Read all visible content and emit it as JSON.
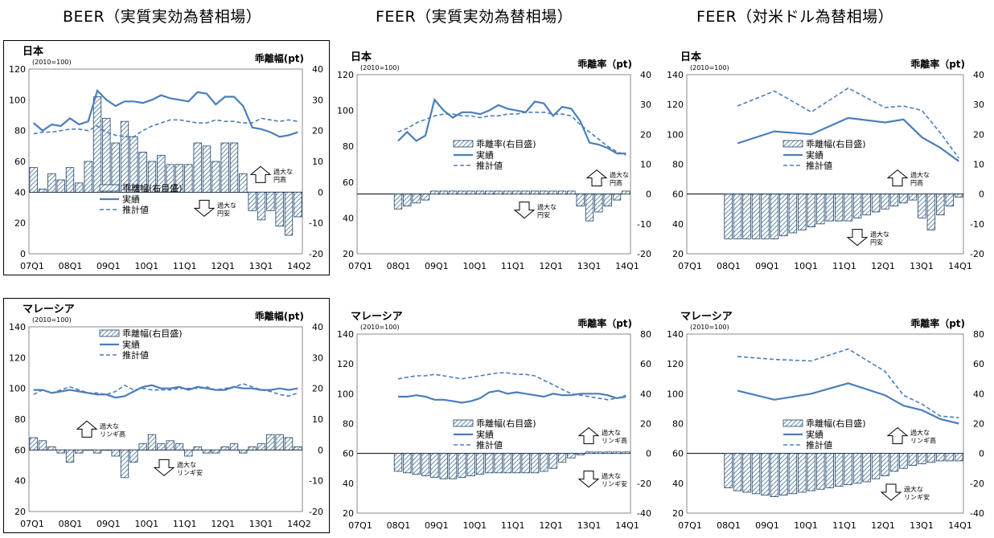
{
  "column_titles": [
    "BEER（実質実効為替相場）",
    "FEER（実質実効為替相場）",
    "FEER（対米ドル為替相場）"
  ],
  "colors": {
    "line": "#4a7ebb",
    "bar_hatch": "#3f6f94",
    "frame": "#000000"
  },
  "icons": {
    "up": "up-arrow-icon",
    "down": "down-arrow-icon"
  },
  "chart_data": [
    {
      "type": "bar",
      "country": "日本",
      "base_label": "(2010=100)",
      "right_label": "乖離幅(pt)",
      "framed": true,
      "ylim": [
        0,
        120
      ],
      "y_ticks": [
        0,
        20,
        40,
        60,
        80,
        100,
        120
      ],
      "y2lim": [
        -20,
        40
      ],
      "y2_ticks": [
        -20,
        -10,
        0,
        10,
        20,
        30,
        40
      ],
      "x_tick_labels": [
        "07Q1",
        "08Q1",
        "09Q1",
        "10Q1",
        "11Q1",
        "12Q1",
        "13Q1",
        "14Q2"
      ],
      "legend": {
        "bar": "乖離幅(右目盛)",
        "actual": "実績",
        "estimate": "推計値"
      },
      "annotations": {
        "up": "過大な\n円高",
        "down": "過大な\n円安"
      },
      "actual": [
        85,
        80,
        84,
        83,
        88,
        84,
        86,
        106,
        100,
        96,
        99,
        99,
        98,
        100,
        103,
        101,
        100,
        99,
        105,
        104,
        97,
        102,
        102,
        96,
        82,
        81,
        79,
        76,
        77,
        79
      ],
      "estimate": [
        78,
        79,
        79,
        80,
        81,
        81,
        80,
        83,
        79,
        77,
        76,
        76,
        80,
        83,
        85,
        87,
        87,
        86,
        85,
        85,
        87,
        86,
        86,
        85,
        85,
        88,
        87,
        86,
        87,
        86
      ],
      "bar": [
        8,
        1,
        6,
        4,
        8,
        3,
        10,
        31,
        24,
        16,
        23,
        18,
        13,
        10,
        12,
        9,
        9,
        9,
        16,
        15,
        10,
        16,
        16,
        6,
        -6,
        -9,
        -6,
        -11,
        -14,
        -8
      ]
    },
    {
      "type": "bar",
      "country": "日本",
      "base_label": "(2010=100)",
      "right_label": "乖離率（pt)",
      "framed": false,
      "ylim": [
        20,
        120
      ],
      "y_ticks": [
        20,
        40,
        60,
        80,
        100,
        120
      ],
      "y2lim": [
        -20,
        40
      ],
      "y2_ticks": [
        -20,
        -10,
        0,
        10,
        20,
        30,
        40
      ],
      "x_tick_labels": [
        "07Q1",
        "08Q1",
        "09Q1",
        "10Q1",
        "11Q1",
        "12Q1",
        "13Q1",
        "14Q1"
      ],
      "legend": {
        "bar": "乖離率(右目盛)",
        "actual": "実績",
        "estimate": "推計値"
      },
      "annotations": {
        "up": "過大な\n円高",
        "down": "過大な\n円安"
      },
      "actual": [
        83,
        88,
        83,
        86,
        106,
        100,
        96,
        99,
        99,
        98,
        100,
        103,
        101,
        100,
        99,
        105,
        104,
        97,
        102,
        101,
        94,
        82,
        81,
        79,
        76,
        76
      ],
      "estimate": [
        88,
        90,
        93,
        95,
        97,
        98,
        98,
        97,
        97,
        96,
        97,
        97,
        98,
        98,
        99,
        99,
        99,
        98,
        98,
        97,
        92,
        88,
        84,
        80,
        77,
        75
      ],
      "bar": [
        -5,
        -4,
        -3,
        -2,
        1,
        1,
        1,
        1,
        1,
        1,
        1,
        1,
        1,
        1,
        1,
        1,
        1,
        1,
        1,
        1,
        -4,
        -9,
        -6,
        -4,
        -2,
        1
      ]
    },
    {
      "type": "bar",
      "country": "日本",
      "base_label": "(2010=100)",
      "right_label": "乖離率（pt)",
      "framed": false,
      "ylim": [
        20,
        140
      ],
      "y_ticks": [
        20,
        40,
        60,
        80,
        100,
        120,
        140
      ],
      "y2lim": [
        -20,
        40
      ],
      "y2_ticks": [
        -20,
        -10,
        0,
        10,
        20,
        30,
        40
      ],
      "x_tick_labels": [
        "07Q1",
        "08Q1",
        "09Q1",
        "10Q1",
        "11Q1",
        "12Q1",
        "13Q1",
        "14Q1"
      ],
      "legend": {
        "bar": "乖離幅(右目盛)",
        "actual": "実績",
        "estimate": "推計値"
      },
      "annotations": {
        "up": "過大な\n円高",
        "down": "過大な\n円安"
      },
      "actual": [
        null,
        null,
        null,
        null,
        null,
        null,
        null,
        null,
        null,
        null,
        null,
        null,
        null,
        null,
        null,
        null,
        null,
        null,
        null,
        null,
        null,
        null,
        null,
        null,
        null,
        null
      ],
      "actual_points": [
        [
          1,
          94
        ],
        [
          5,
          102
        ],
        [
          9,
          100
        ],
        [
          13,
          111
        ],
        [
          17,
          108
        ],
        [
          19,
          110
        ],
        [
          21,
          98
        ],
        [
          23,
          91
        ],
        [
          25,
          82
        ]
      ],
      "estimate_points": [
        [
          1,
          119
        ],
        [
          5,
          129
        ],
        [
          9,
          115
        ],
        [
          13,
          131
        ],
        [
          17,
          118
        ],
        [
          19,
          119
        ],
        [
          21,
          116
        ],
        [
          23,
          101
        ],
        [
          25,
          84
        ]
      ],
      "bar": [
        -15,
        -15,
        -15,
        -15,
        -15,
        -15,
        -14,
        -13,
        -12,
        -11,
        -10,
        -9,
        -9,
        -9,
        -8,
        -7,
        -6,
        -5,
        -4,
        -3,
        -2,
        -8,
        -12,
        -7,
        -4,
        -1
      ]
    },
    {
      "type": "bar",
      "country": "マレーシア",
      "base_label": "(2010=100)",
      "right_label": "乖離幅(pt)",
      "framed": true,
      "ylim": [
        20,
        140
      ],
      "y_ticks": [
        20,
        40,
        60,
        80,
        100,
        120,
        140
      ],
      "y2lim": [
        -20,
        40
      ],
      "y2_ticks": [
        -20,
        -10,
        0,
        10,
        20,
        30,
        40
      ],
      "x_tick_labels": [
        "07Q1",
        "08Q1",
        "09Q1",
        "10Q1",
        "11Q1",
        "12Q1",
        "13Q1",
        "14Q2"
      ],
      "legend": {
        "bar": "乖離幅(右目盛)",
        "actual": "実績",
        "estimate": "推計値"
      },
      "annotations": {
        "up": "過大な\nリンギ高",
        "down": "過大な\nリンギ安"
      },
      "actual": [
        99,
        99,
        97,
        98,
        99,
        98,
        97,
        96,
        96,
        94,
        95,
        98,
        101,
        102,
        100,
        100,
        101,
        99,
        101,
        100,
        99,
        99,
        101,
        100,
        100,
        99,
        99,
        100,
        99,
        100
      ],
      "estimate": [
        96,
        99,
        97,
        99,
        101,
        99,
        97,
        97,
        96,
        98,
        102,
        99,
        100,
        99,
        99,
        99,
        100,
        100,
        100,
        101,
        99,
        100,
        101,
        103,
        101,
        99,
        98,
        96,
        95,
        97
      ],
      "bar": [
        4,
        3,
        1,
        -1,
        -4,
        -1,
        0,
        -1,
        0,
        -2,
        -9,
        -4,
        2,
        5,
        2,
        3,
        2,
        -2,
        1,
        -1,
        -1,
        1,
        2,
        -1,
        1,
        2,
        5,
        5,
        4,
        1
      ]
    },
    {
      "type": "bar",
      "country": "マレーシア",
      "base_label": "(2010=100)",
      "right_label": "乖離率（pt)",
      "framed": false,
      "ylim": [
        20,
        140
      ],
      "y_ticks": [
        20,
        40,
        60,
        80,
        100,
        120,
        140
      ],
      "y2lim": [
        -40,
        80
      ],
      "y2_ticks": [
        -40,
        -20,
        0,
        20,
        40,
        60,
        80
      ],
      "x_tick_labels": [
        "07Q1",
        "08Q1",
        "09Q1",
        "10Q1",
        "11Q1",
        "12Q1",
        "13Q1",
        "14Q1"
      ],
      "legend": {
        "bar": "乖離幅(右目盛)",
        "actual": "実績",
        "estimate": "推計値"
      },
      "annotations": {
        "up": "過大な\nリンギ高",
        "down": "過大な\nリンギ安"
      },
      "actual": [
        98,
        98,
        99,
        98,
        96,
        96,
        95,
        94,
        95,
        97,
        101,
        102,
        100,
        101,
        100,
        99,
        98,
        100,
        99,
        99,
        100,
        100,
        100,
        99,
        97,
        98
      ],
      "estimate": [
        110,
        111,
        112,
        112,
        113,
        112,
        111,
        110,
        111,
        112,
        113,
        114,
        114,
        113,
        113,
        112,
        109,
        106,
        103,
        100,
        99,
        98,
        97,
        96,
        97,
        99
      ],
      "bar": [
        -12,
        -13,
        -14,
        -15,
        -16,
        -17,
        -17,
        -16,
        -15,
        -14,
        -13,
        -13,
        -13,
        -13,
        -13,
        -13,
        -12,
        -10,
        -6,
        -3,
        -1,
        1,
        1,
        1,
        1,
        1
      ]
    },
    {
      "type": "bar",
      "country": "マレーシア",
      "base_label": "(2010=100)",
      "right_label": "乖離率（pt)",
      "framed": false,
      "ylim": [
        20,
        140
      ],
      "y_ticks": [
        20,
        40,
        60,
        80,
        100,
        120,
        140
      ],
      "y2lim": [
        -40,
        80
      ],
      "y2_ticks": [
        -40,
        -20,
        0,
        20,
        40,
        60,
        80
      ],
      "x_tick_labels": [
        "07Q1",
        "08Q1",
        "09Q1",
        "10Q1",
        "11Q1",
        "12Q1",
        "13Q1",
        "14Q1"
      ],
      "legend": {
        "bar": "乖離幅(右目盛)",
        "actual": "実績",
        "estimate": "推計値"
      },
      "annotations": {
        "up": "過大な\nリンギ高",
        "down": "過大な\nリンギ安"
      },
      "actual": [
        null
      ],
      "actual_points": [
        [
          1,
          102
        ],
        [
          5,
          96
        ],
        [
          9,
          100
        ],
        [
          13,
          107
        ],
        [
          17,
          99
        ],
        [
          19,
          92
        ],
        [
          21,
          89
        ],
        [
          23,
          83
        ],
        [
          25,
          80
        ]
      ],
      "estimate_points": [
        [
          1,
          125
        ],
        [
          5,
          123
        ],
        [
          9,
          122
        ],
        [
          13,
          130
        ],
        [
          17,
          115
        ],
        [
          19,
          99
        ],
        [
          21,
          93
        ],
        [
          23,
          85
        ],
        [
          25,
          84
        ]
      ],
      "bar": [
        -23,
        -25,
        -26,
        -27,
        -28,
        -29,
        -28,
        -27,
        -26,
        -25,
        -24,
        -23,
        -22,
        -21,
        -20,
        -19,
        -17,
        -15,
        -12,
        -10,
        -8,
        -7,
        -6,
        -5,
        -5,
        -5
      ]
    }
  ]
}
